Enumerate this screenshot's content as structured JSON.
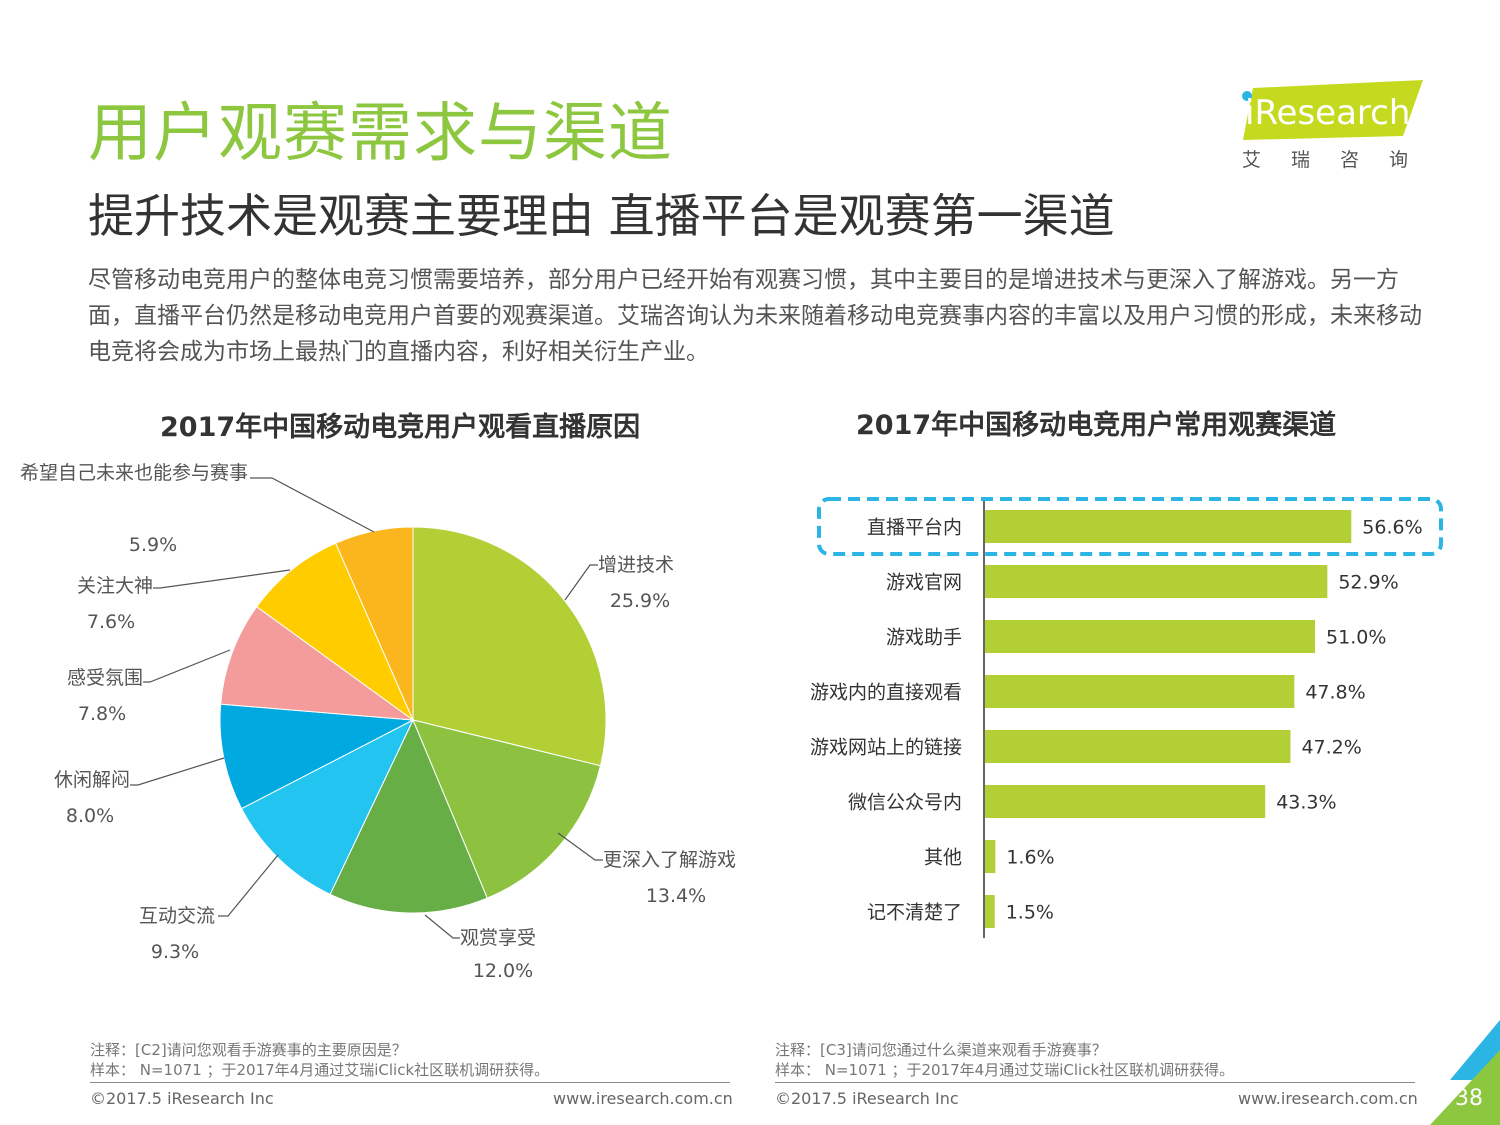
{
  "header": {
    "title": "用户观赛需求与渠道",
    "subtitle": "提升技术是观赛主要理由 直播平台是观赛第一渠道",
    "intro": "尽管移动电竞用户的整体电竞习惯需要培养，部分用户已经开始有观赛习惯，其中主要目的是增进技术与更深入了解游戏。另一方面，直播平台仍然是移动电竞用户首要的观赛渠道。艾瑞咨询认为未来随着移动电竞赛事内容的丰富以及用户习惯的形成，未来移动电竞将会成为市场上最热门的直播内容，利好相关衍生产业。"
  },
  "logo": {
    "text": "iResearch",
    "cn": "艾瑞咨询",
    "color": "#c5da1f"
  },
  "chart_data": [
    {
      "type": "pie",
      "title": "2017年中国移动电竞用户观看直播原因",
      "slices": [
        {
          "label": "增进技术",
          "value": 25.9,
          "display": "25.9%",
          "color": "#b2cf35"
        },
        {
          "label": "更深入了解游戏",
          "value": 13.4,
          "display": "13.4%",
          "color": "#8cc23f"
        },
        {
          "label": "观赏享受",
          "value": 12.0,
          "display": "12.0%",
          "color": "#67ae47"
        },
        {
          "label": "互动交流",
          "value": 9.3,
          "display": "9.3%",
          "color": "#23c4ef"
        },
        {
          "label": "休闲解闷",
          "value": 8.0,
          "display": "8.0%",
          "color": "#00a9e0"
        },
        {
          "label": "感受氛围",
          "value": 7.8,
          "display": "7.8%",
          "color": "#f49c9c"
        },
        {
          "label": "关注大神",
          "value": 7.6,
          "display": "7.6%",
          "color": "#ffcc00"
        },
        {
          "label": "希望自己未来也能参与赛事",
          "value": 5.9,
          "display": "5.9%",
          "color": "#fbb61e"
        }
      ],
      "start_angle_deg": 0,
      "direction": "clockwise"
    },
    {
      "type": "bar",
      "orientation": "horizontal",
      "title": "2017年中国移动电竞用户常用观赛渠道",
      "categories": [
        "直播平台内",
        "游戏官网",
        "游戏助手",
        "游戏内的直接观看",
        "游戏网站上的链接",
        "微信公众号内",
        "其他",
        "记不清楚了"
      ],
      "values": [
        56.6,
        52.9,
        51.0,
        47.8,
        47.2,
        43.3,
        1.6,
        1.5
      ],
      "display": [
        "56.6%",
        "52.9%",
        "51.0%",
        "47.8%",
        "47.2%",
        "43.3%",
        "1.6%",
        "1.5%"
      ],
      "xlim": [
        0,
        70
      ],
      "bar_color": "#b2cf35",
      "highlight_category": "直播平台内",
      "highlight_color": "#2bb5e5"
    }
  ],
  "notes": {
    "left": [
      "注释：[C2]请问您观看手游赛事的主要原因是？",
      "样本： N=1071 ；于2017年4月通过艾瑞iClick社区联机调研获得。"
    ],
    "right": [
      "注释：[C3]请问您通过什么渠道来观看手游赛事？",
      "样本： N=1071 ；于2017年4月通过艾瑞iClick社区联机调研获得。"
    ]
  },
  "footer": {
    "copyright": "©2017.5 iResearch Inc",
    "url": "www.iresearch.com.cn",
    "page": "38"
  },
  "accent_colors": {
    "title_green": "#8dc63f",
    "corner_green": "#8dc63f",
    "corner_blue": "#2bb5e5"
  }
}
